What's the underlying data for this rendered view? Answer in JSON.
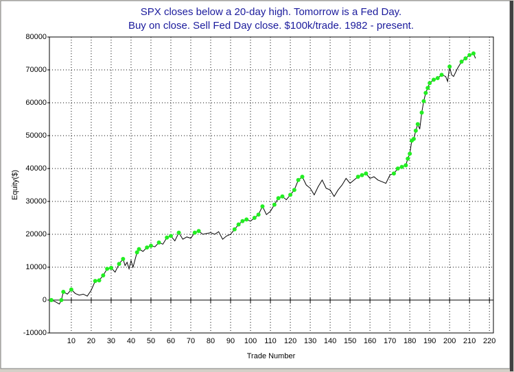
{
  "chart_data": {
    "type": "line",
    "title": "SPX closes below a 20-day high. Tomorrow is a Fed Day.",
    "subtitle": "Buy on close. Sell Fed Day close. $100k/trade. 1982 - present.",
    "x_label": "Trade Number",
    "y_label": "Equity($)",
    "x": [
      0,
      2,
      4,
      5,
      6,
      8,
      10,
      12,
      14,
      16,
      18,
      20,
      22,
      24,
      26,
      28,
      30,
      32,
      34,
      36,
      37,
      38,
      39,
      40,
      41,
      43,
      44,
      46,
      48,
      50,
      52,
      54,
      56,
      58,
      60,
      62,
      64,
      66,
      68,
      70,
      72,
      74,
      76,
      80,
      82,
      84,
      86,
      88,
      90,
      92,
      94,
      96,
      98,
      100,
      102,
      104,
      106,
      108,
      110,
      112,
      114,
      116,
      118,
      120,
      122,
      124,
      126,
      128,
      130,
      132,
      134,
      136,
      138,
      140,
      142,
      144,
      146,
      148,
      150,
      152,
      154,
      156,
      158,
      160,
      162,
      164,
      166,
      168,
      170,
      172,
      174,
      176,
      178,
      179,
      180,
      181,
      182,
      183,
      184,
      185,
      186,
      187,
      188,
      189,
      190,
      192,
      194,
      196,
      198,
      199,
      200,
      201,
      202,
      204,
      206,
      208,
      210,
      212,
      213
    ],
    "values": [
      0,
      -500,
      -1200,
      0,
      2500,
      1800,
      3200,
      2000,
      1500,
      1800,
      1200,
      3000,
      5800,
      6000,
      7500,
      9500,
      9800,
      8500,
      11000,
      12500,
      10500,
      11500,
      9500,
      12000,
      10000,
      14500,
      15500,
      14800,
      16000,
      16500,
      16200,
      17500,
      17000,
      19000,
      19500,
      18000,
      20500,
      18500,
      19200,
      18800,
      20500,
      21000,
      20000,
      20500,
      20000,
      20800,
      18500,
      19500,
      20000,
      21500,
      23000,
      24000,
      24500,
      24000,
      25000,
      26000,
      28500,
      26000,
      27000,
      29000,
      31000,
      31500,
      30500,
      32000,
      33500,
      36500,
      37500,
      35000,
      34000,
      32000,
      34500,
      36500,
      34000,
      33500,
      31500,
      33500,
      35000,
      37000,
      35500,
      36500,
      37500,
      38000,
      38500,
      37000,
      37500,
      36500,
      36000,
      35500,
      38000,
      38500,
      40000,
      40500,
      41000,
      43000,
      44500,
      48500,
      49000,
      51500,
      53500,
      52000,
      57000,
      60500,
      63000,
      64500,
      66000,
      67000,
      67500,
      68500,
      68000,
      66500,
      71000,
      68500,
      68000,
      70500,
      72500,
      73500,
      74500,
      75000,
      73500
    ],
    "color": "#000000",
    "marker_color": "#22ee22",
    "xlim": [
      -1,
      222
    ],
    "xticks": [
      10,
      20,
      30,
      40,
      50,
      60,
      70,
      80,
      90,
      100,
      110,
      120,
      130,
      140,
      150,
      160,
      170,
      180,
      190,
      200,
      210,
      220
    ],
    "ylim": [
      -10000,
      80000
    ],
    "yticks": [
      -10000,
      0,
      10000,
      20000,
      30000,
      40000,
      50000,
      60000,
      70000,
      80000
    ],
    "grid": true
  }
}
